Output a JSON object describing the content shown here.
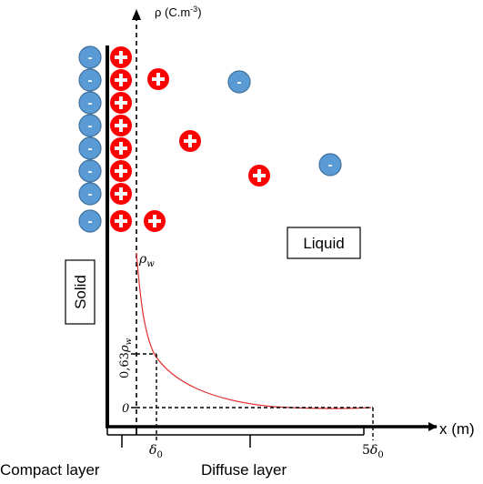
{
  "axis": {
    "y_label": "ρ (C.m",
    "y_label_exp": "-3",
    "x_label": "x (m)"
  },
  "labels": {
    "solid": "Solid",
    "liquid": "Liquid",
    "compact_layer": "Compact layer",
    "diffuse_layer": "Diffuse layer"
  },
  "curve_labels": {
    "rho_w": "ρ",
    "rho_w_sub": "w",
    "zero": "0",
    "frac_063": "0,63",
    "frac_063_rho": "ρ",
    "frac_063_sub": "w"
  },
  "tick_labels": {
    "delta0": "δ",
    "delta0_sub": "0",
    "five_delta0_coef": "5",
    "five_delta0": "δ",
    "five_delta0_sub": "0"
  },
  "ions": {
    "negative_symbol": "-",
    "positive_symbol": "+",
    "negative_color": "#5b9bd5",
    "positive_color": "#ff0000"
  }
}
